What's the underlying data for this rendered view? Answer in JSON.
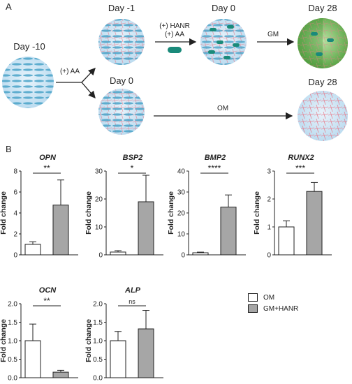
{
  "figure": {
    "panel_a_letter": "A",
    "panel_b_letter": "B",
    "stages": {
      "day_m10": "Day -10",
      "day_m1": "Day -1",
      "day_0_top": "Day 0",
      "day_28_top": "Day 28",
      "day_0_bottom": "Day 0",
      "day_28_bottom": "Day 28"
    },
    "arrows": {
      "aa": "(+) AA",
      "hanr_line1": "(+) HANR",
      "hanr_line2": "(+) AA",
      "gm": "GM",
      "om": "OM"
    },
    "legend": [
      {
        "label": "OM",
        "color": "#ffffff"
      },
      {
        "label": "GM+HANR",
        "color": "#a6a6a6"
      }
    ],
    "colors": {
      "cell_blue": "#4aa3c8",
      "matrix_pink": "#e87a8a",
      "sphere_blue": "#cfe6f5",
      "sphere_green": "#79c060",
      "hanr_teal": "#1a8a7a",
      "bar_gray": "#a6a6a6"
    }
  },
  "chart_data": [
    {
      "type": "bar",
      "title": "OPN",
      "ylabel": "Fold change",
      "categories": [
        "OM",
        "GM+HANR"
      ],
      "values": [
        1.0,
        4.75
      ],
      "errors": [
        0.25,
        2.4
      ],
      "ylim": [
        0,
        8
      ],
      "yticks": [
        "0",
        "2",
        "4",
        "6",
        "8"
      ],
      "significance": "**"
    },
    {
      "type": "bar",
      "title": "BSP2",
      "ylabel": "Fold change",
      "categories": [
        "OM",
        "GM+HANR"
      ],
      "values": [
        1.0,
        19.0
      ],
      "errors": [
        0.5,
        9.5
      ],
      "ylim": [
        0,
        30
      ],
      "yticks": [
        "0",
        "10",
        "20",
        "30"
      ],
      "significance": "*"
    },
    {
      "type": "bar",
      "title": "BMP2",
      "ylabel": "Fold change",
      "categories": [
        "OM",
        "GM+HANR"
      ],
      "values": [
        1.0,
        22.8
      ],
      "errors": [
        0.3,
        5.8
      ],
      "ylim": [
        0,
        40
      ],
      "yticks": [
        "0",
        "10",
        "20",
        "30",
        "40"
      ],
      "significance": "****"
    },
    {
      "type": "bar",
      "title": "RUNX2",
      "ylabel": "Fold change",
      "categories": [
        "OM",
        "GM+HANR"
      ],
      "values": [
        1.0,
        2.27
      ],
      "errors": [
        0.22,
        0.32
      ],
      "ylim": [
        0,
        3
      ],
      "yticks": [
        "0",
        "1",
        "2",
        "3"
      ],
      "significance": "***"
    },
    {
      "type": "bar",
      "title": "OCN",
      "ylabel": "Fold change",
      "categories": [
        "OM",
        "GM+HANR"
      ],
      "values": [
        1.0,
        0.15
      ],
      "errors": [
        0.45,
        0.05
      ],
      "ylim": [
        0,
        2.0
      ],
      "yticks": [
        "0.0",
        "0.5",
        "1.0",
        "1.5",
        "2.0"
      ],
      "significance": "**"
    },
    {
      "type": "bar",
      "title": "ALP",
      "ylabel": "Fold change",
      "categories": [
        "OM",
        "GM+HANR"
      ],
      "values": [
        1.0,
        1.32
      ],
      "errors": [
        0.25,
        0.5
      ],
      "ylim": [
        0,
        2.0
      ],
      "yticks": [
        "0.0",
        "0.5",
        "1.0",
        "1.5",
        "2.0"
      ],
      "significance": "ns"
    }
  ]
}
